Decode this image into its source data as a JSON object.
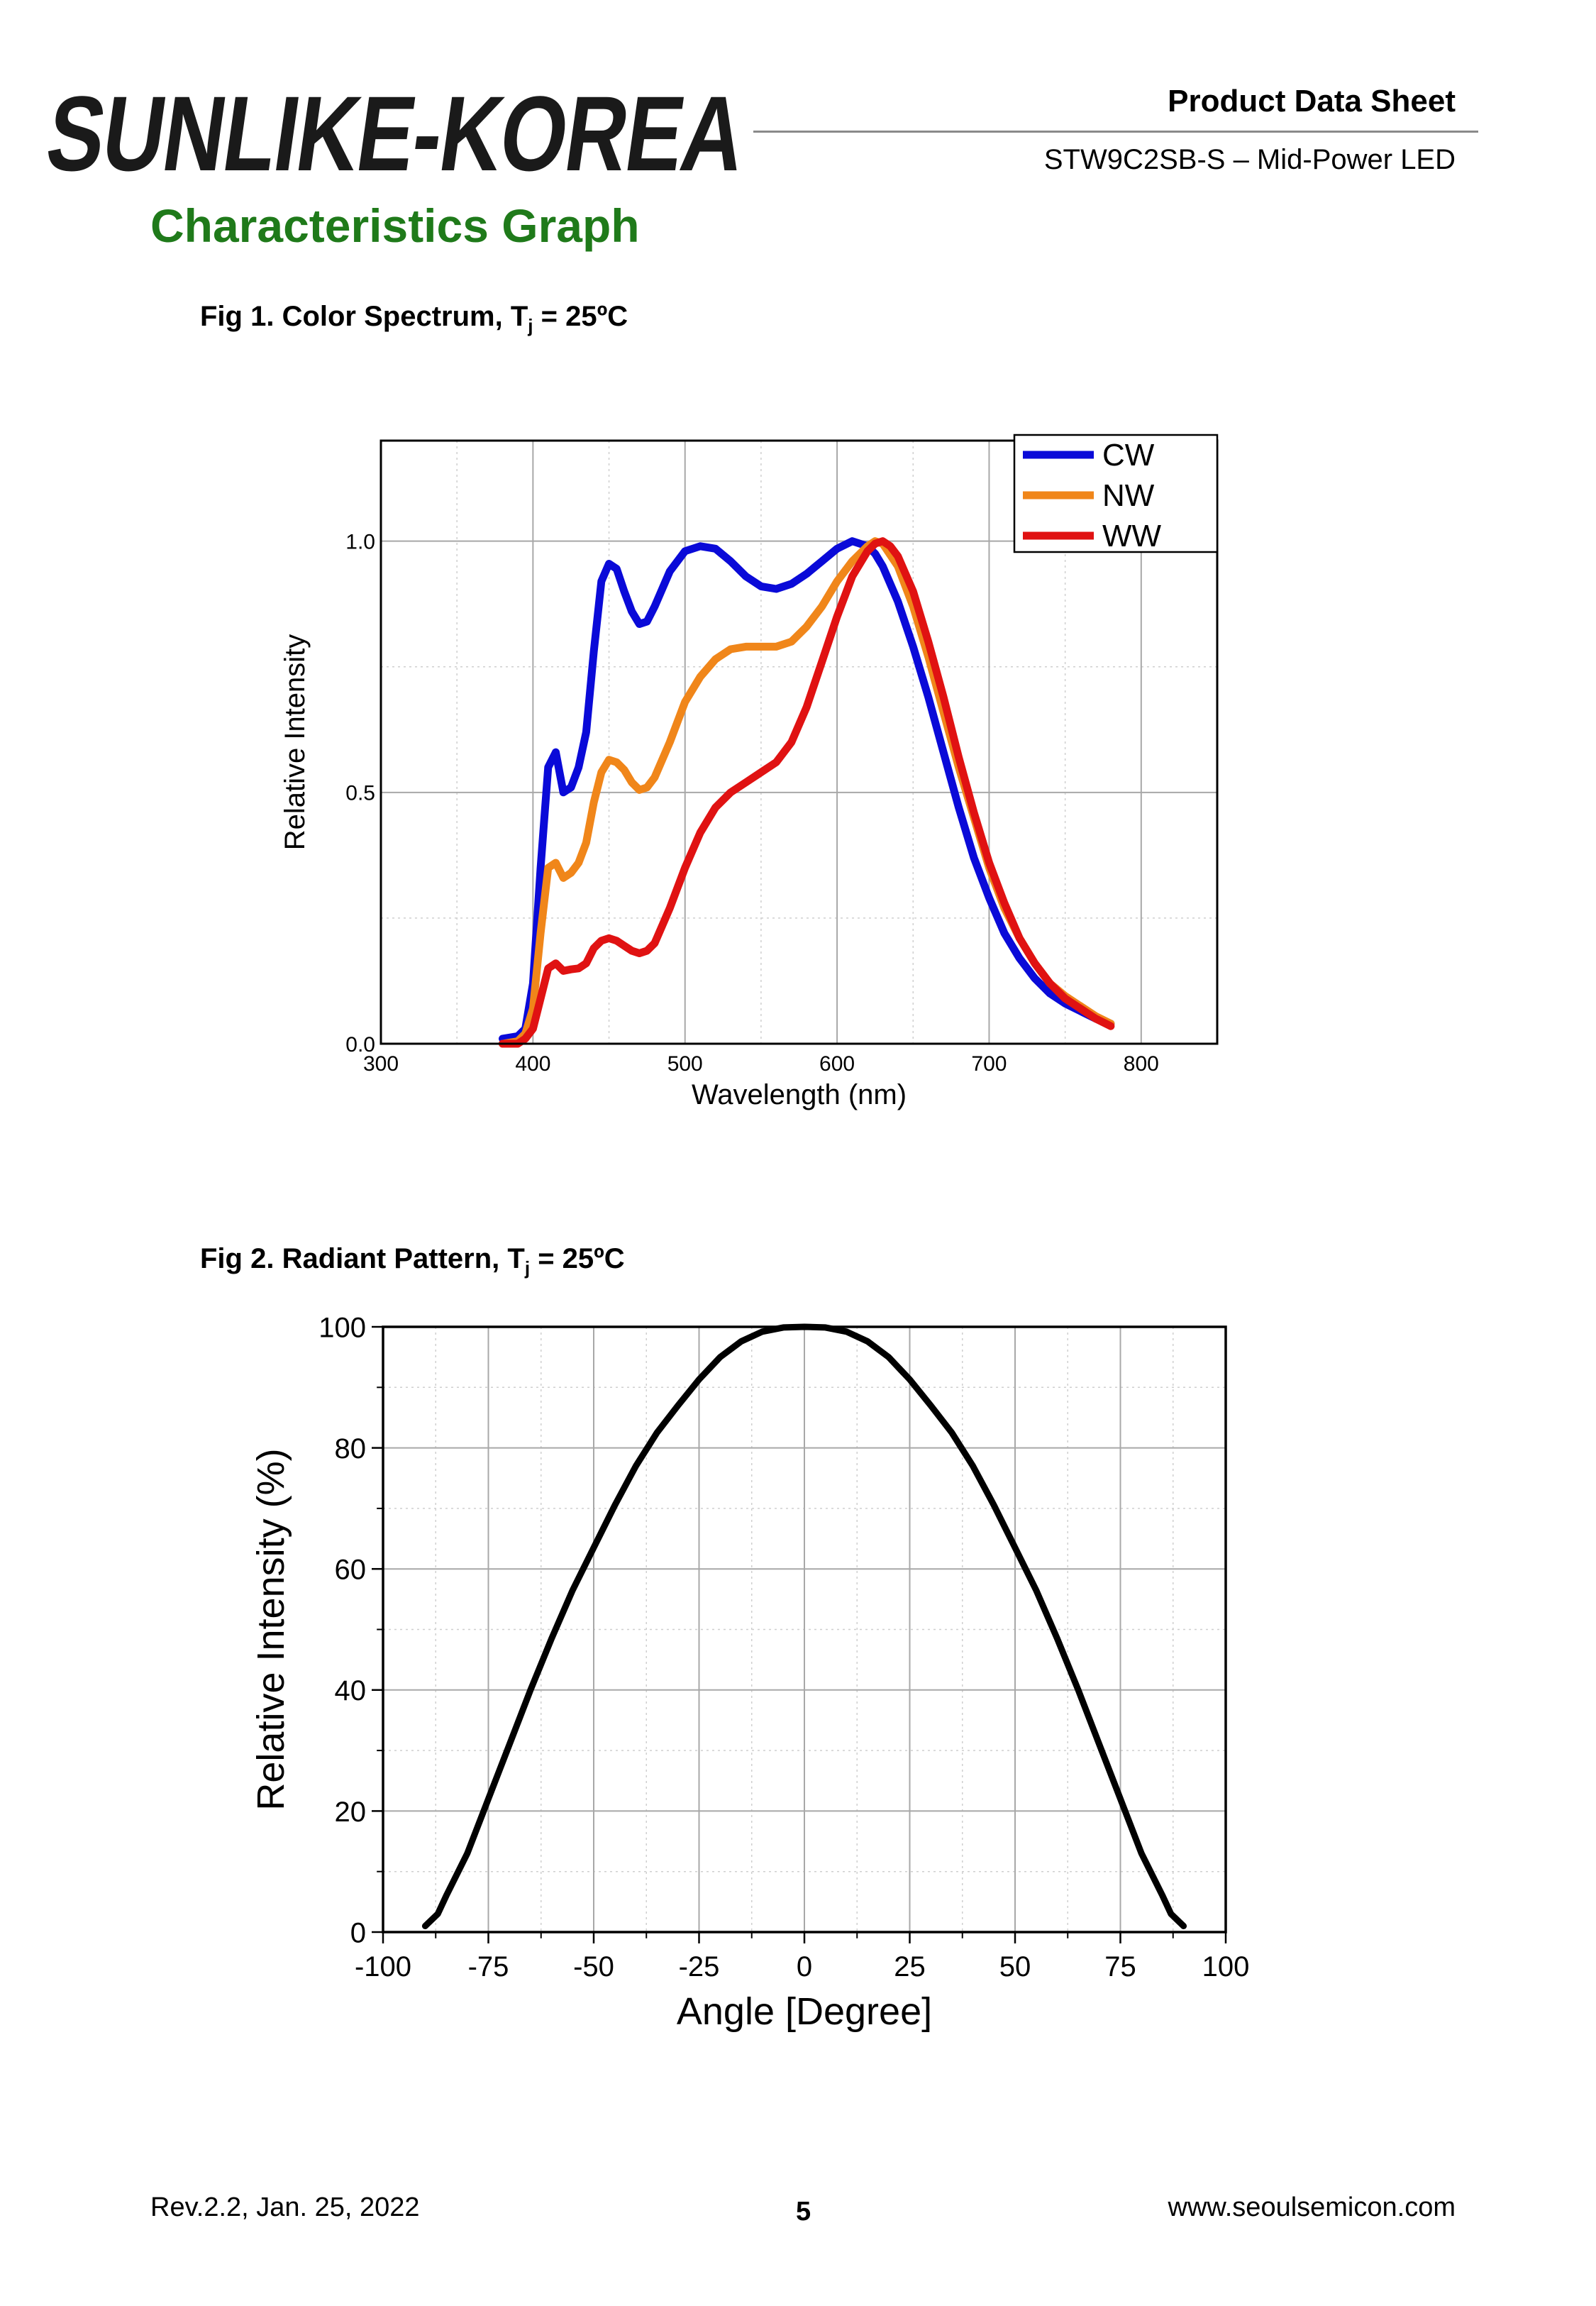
{
  "header": {
    "logo_text": "SUNLIKE-KOREA",
    "doc_type": "Product Data Sheet",
    "product_name": "STW9C2SB-S – Mid-Power LED"
  },
  "section_title": "Characteristics Graph",
  "fig1": {
    "caption_main": "Fig 1. Color Spectrum, T",
    "caption_sub": "j",
    "caption_tail": " = 25ºC"
  },
  "fig2": {
    "caption_main": "Fig 2. Radiant Pattern, T",
    "caption_sub": "j",
    "caption_tail": " = 25ºC"
  },
  "footer": {
    "revision": "Rev.2.2, Jan. 25, 2022",
    "page_number": "5",
    "website": "www.seoulsemicon.com"
  },
  "colors": {
    "section_title": "#1f7a1a",
    "cw": "#0a0ad8",
    "nw": "#f0861a",
    "ww": "#e01212"
  },
  "chart_data": [
    {
      "type": "line",
      "title": "",
      "xlabel": "Wavelength (nm)",
      "ylabel": "Relative Intensity",
      "xlim": [
        300,
        850
      ],
      "ylim": [
        0.0,
        1.2
      ],
      "xticks": [
        "300",
        "400",
        "500",
        "600",
        "700",
        "800"
      ],
      "yticks": [
        "0.0",
        "0.5",
        "1.0"
      ],
      "grid": true,
      "legend": "top-right",
      "series": [
        {
          "name": "CW",
          "color": "#0a0ad8",
          "x": [
            380,
            390,
            395,
            400,
            405,
            410,
            415,
            420,
            425,
            430,
            435,
            440,
            445,
            450,
            455,
            460,
            465,
            470,
            475,
            480,
            490,
            500,
            510,
            520,
            530,
            540,
            550,
            560,
            570,
            580,
            590,
            600,
            610,
            615,
            620,
            625,
            630,
            640,
            650,
            660,
            670,
            680,
            690,
            700,
            710,
            720,
            730,
            740,
            750,
            760,
            770,
            780
          ],
          "y": [
            0.01,
            0.015,
            0.03,
            0.12,
            0.35,
            0.55,
            0.58,
            0.5,
            0.51,
            0.55,
            0.62,
            0.78,
            0.92,
            0.955,
            0.945,
            0.9,
            0.86,
            0.835,
            0.84,
            0.87,
            0.94,
            0.98,
            0.99,
            0.985,
            0.96,
            0.93,
            0.91,
            0.905,
            0.915,
            0.935,
            0.96,
            0.985,
            1.0,
            0.995,
            0.99,
            0.975,
            0.95,
            0.88,
            0.79,
            0.69,
            0.58,
            0.47,
            0.37,
            0.29,
            0.22,
            0.17,
            0.13,
            0.1,
            0.08,
            0.065,
            0.05,
            0.04
          ]
        },
        {
          "name": "NW",
          "color": "#f0861a",
          "x": [
            380,
            390,
            395,
            400,
            405,
            410,
            415,
            420,
            425,
            430,
            435,
            440,
            445,
            450,
            455,
            460,
            465,
            470,
            475,
            480,
            490,
            500,
            510,
            520,
            530,
            540,
            550,
            560,
            570,
            580,
            590,
            600,
            610,
            620,
            625,
            630,
            640,
            650,
            660,
            670,
            680,
            690,
            700,
            710,
            720,
            730,
            740,
            750,
            760,
            770,
            780
          ],
          "y": [
            0.0,
            0.005,
            0.02,
            0.07,
            0.22,
            0.35,
            0.36,
            0.33,
            0.34,
            0.36,
            0.4,
            0.48,
            0.54,
            0.565,
            0.56,
            0.545,
            0.52,
            0.505,
            0.51,
            0.53,
            0.6,
            0.68,
            0.73,
            0.765,
            0.785,
            0.79,
            0.79,
            0.79,
            0.8,
            0.83,
            0.87,
            0.92,
            0.96,
            0.99,
            1.0,
            0.995,
            0.95,
            0.87,
            0.77,
            0.66,
            0.55,
            0.45,
            0.35,
            0.27,
            0.21,
            0.16,
            0.12,
            0.095,
            0.075,
            0.055,
            0.04
          ]
        },
        {
          "name": "WW",
          "color": "#e01212",
          "x": [
            380,
            390,
            395,
            400,
            405,
            410,
            415,
            420,
            425,
            430,
            435,
            440,
            445,
            450,
            455,
            460,
            465,
            470,
            475,
            480,
            490,
            500,
            510,
            520,
            530,
            540,
            550,
            560,
            570,
            580,
            590,
            600,
            610,
            620,
            625,
            630,
            635,
            640,
            650,
            660,
            670,
            680,
            690,
            700,
            710,
            720,
            730,
            740,
            750,
            760,
            770,
            780
          ],
          "y": [
            0.0,
            0.0,
            0.01,
            0.03,
            0.09,
            0.15,
            0.16,
            0.145,
            0.148,
            0.15,
            0.16,
            0.19,
            0.205,
            0.21,
            0.205,
            0.195,
            0.185,
            0.18,
            0.185,
            0.2,
            0.27,
            0.35,
            0.42,
            0.47,
            0.5,
            0.52,
            0.54,
            0.56,
            0.6,
            0.67,
            0.76,
            0.85,
            0.93,
            0.98,
            0.995,
            1.0,
            0.99,
            0.97,
            0.9,
            0.8,
            0.69,
            0.57,
            0.46,
            0.36,
            0.28,
            0.21,
            0.16,
            0.12,
            0.09,
            0.07,
            0.05,
            0.035
          ]
        }
      ]
    },
    {
      "type": "line",
      "title": "",
      "xlabel": "Angle [Degree]",
      "ylabel": "Relative Intensity (%)",
      "xlim": [
        -100,
        100
      ],
      "ylim": [
        0,
        100
      ],
      "xticks": [
        "-100",
        "-75",
        "-50",
        "-25",
        "0",
        "25",
        "50",
        "75",
        "100"
      ],
      "yticks": [
        "0",
        "20",
        "40",
        "60",
        "80",
        "100"
      ],
      "grid": true,
      "legend": "none",
      "series": [
        {
          "name": "",
          "color": "#000000",
          "x": [
            -90,
            -87,
            -85,
            -80,
            -75,
            -70,
            -65,
            -60,
            -55,
            -50,
            -45,
            -40,
            -35,
            -30,
            -25,
            -20,
            -15,
            -10,
            -5,
            0,
            5,
            10,
            15,
            20,
            25,
            30,
            35,
            40,
            45,
            50,
            55,
            60,
            65,
            70,
            75,
            80,
            85,
            87,
            90
          ],
          "y": [
            1,
            3,
            6,
            13,
            22,
            31,
            40,
            48.5,
            56.5,
            63.5,
            70.5,
            77,
            82.5,
            87,
            91.3,
            95,
            97.6,
            99.2,
            99.9,
            100,
            99.9,
            99.2,
            97.6,
            95,
            91.3,
            87,
            82.5,
            77,
            70.5,
            63.5,
            56.5,
            48.5,
            40,
            31,
            22,
            13,
            6,
            3,
            1
          ]
        }
      ]
    }
  ]
}
